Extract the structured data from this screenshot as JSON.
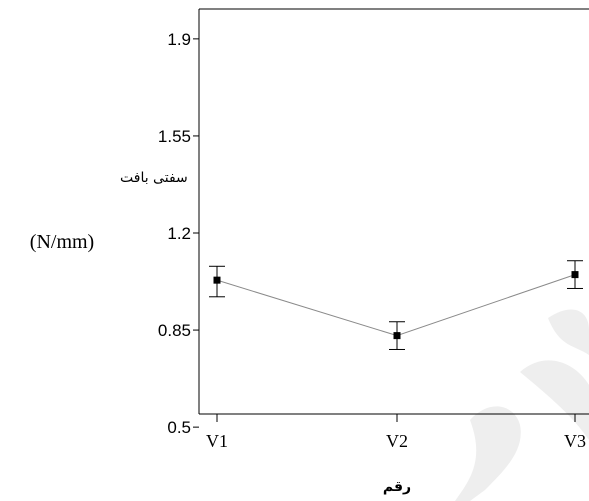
{
  "chart_data": {
    "type": "line",
    "categories": [
      "V1",
      "V2",
      "V3"
    ],
    "series": [
      {
        "values": [
          1.03,
          0.83,
          1.05
        ],
        "error_low": [
          0.97,
          0.78,
          1.0
        ],
        "error_high": [
          1.08,
          0.88,
          1.1
        ],
        "marker": "square",
        "color": "#000000",
        "line_color": "#8a8a8a"
      }
    ],
    "ylabel": "سفتی بافت",
    "ylabel_unit": "(N/mm)",
    "xlabel": "رقم",
    "ylim": [
      0.45,
      1.95
    ],
    "yticks": [
      0.5,
      0.85,
      1.2,
      1.55,
      1.9
    ],
    "ytick_labels": [
      "0.5",
      "0.85",
      "1.2",
      "1.55",
      "1.9"
    ],
    "grid": false
  }
}
